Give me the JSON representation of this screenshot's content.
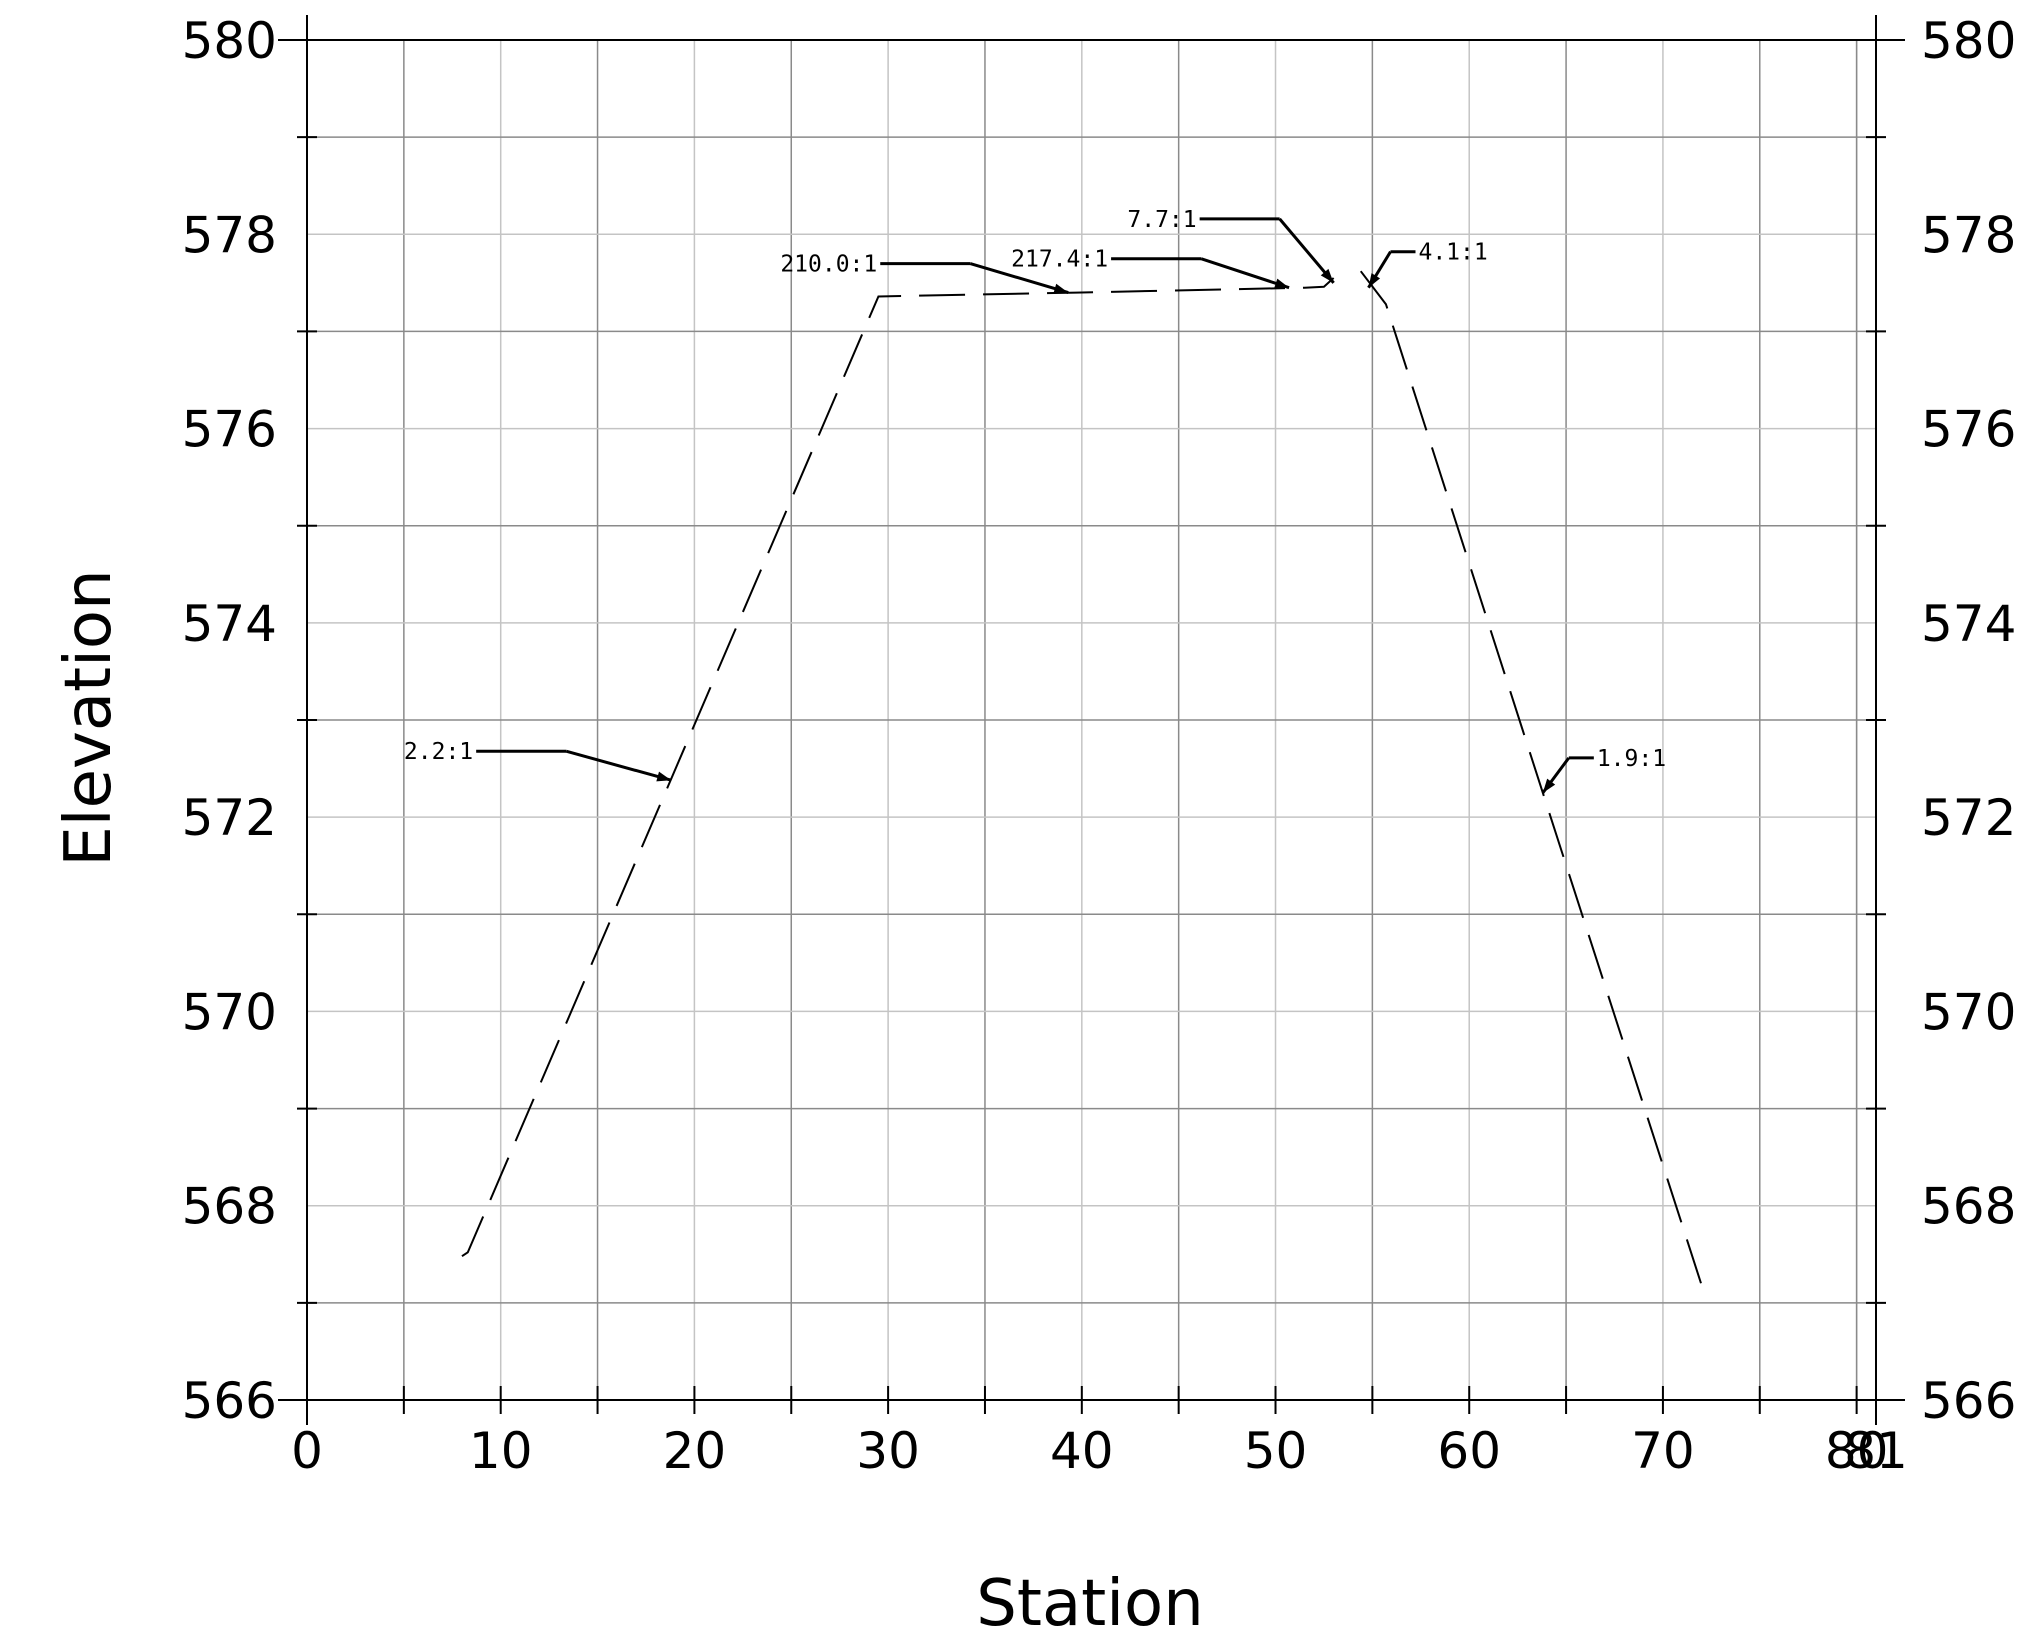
{
  "chart_data": {
    "type": "line",
    "title": "",
    "xlabel": "Station",
    "ylabel": "Elevation",
    "xlim": [
      0,
      81
    ],
    "ylim": [
      566,
      580
    ],
    "x_tick_labels": [
      "0",
      "10",
      "20",
      "30",
      "40",
      "50",
      "60",
      "70",
      "80",
      "81"
    ],
    "y_tick_labels": [
      "566",
      "568",
      "570",
      "572",
      "574",
      "576",
      "578",
      "580"
    ],
    "grid": true,
    "legend": "none",
    "series": [
      {
        "style": "dashed",
        "color": "#000000",
        "x": [
          8.0,
          8.3,
          29.5,
          39.7,
          51.5,
          52.5,
          53.0
        ],
        "y": [
          567.48,
          567.52,
          577.36,
          577.4,
          577.45,
          577.46,
          577.55
        ]
      },
      {
        "style": "dashed",
        "color": "#000000",
        "x": [
          54.4,
          55.7,
          63.8,
          72.0
        ],
        "y": [
          577.62,
          577.28,
          572.25,
          567.18
        ]
      }
    ],
    "annotations": [
      {
        "text": "2.2:1",
        "x": 18.8,
        "y": 572.38
      },
      {
        "text": "210.0:1",
        "x": 39.3,
        "y": 577.4
      },
      {
        "text": "217.4:1",
        "x": 50.7,
        "y": 577.45
      },
      {
        "text": "7.7:1",
        "x": 53.0,
        "y": 577.5
      },
      {
        "text": "4.1:1",
        "x": 54.8,
        "y": 577.45
      },
      {
        "text": "1.9:1",
        "x": 63.8,
        "y": 572.25
      }
    ]
  }
}
